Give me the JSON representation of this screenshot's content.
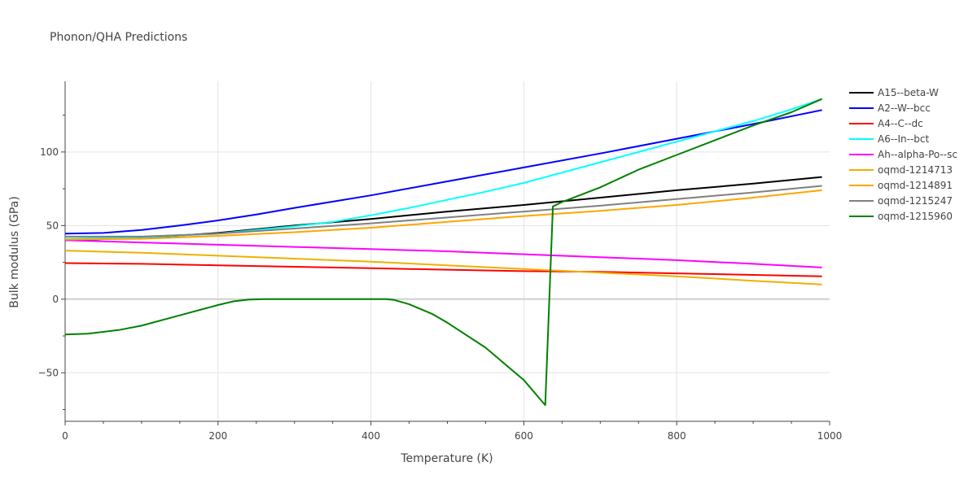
{
  "chart_data": {
    "type": "line",
    "title": "Phonon/QHA Predictions",
    "xlabel": "Temperature (K)",
    "ylabel": "Bulk modulus (GPa)",
    "xlim": [
      0,
      1000
    ],
    "ylim": [
      -83,
      148
    ],
    "x_ticks": [
      0,
      200,
      400,
      600,
      800,
      1000
    ],
    "y_ticks": [
      -50,
      0,
      50,
      100
    ],
    "x_tick_labels": [
      "0",
      "200",
      "400",
      "600",
      "800",
      "1000"
    ],
    "y_tick_labels": [
      "−50",
      "0",
      "50",
      "100"
    ],
    "grid": true,
    "legend_position": "right",
    "series": [
      {
        "name": "A15--beta-W",
        "color": "#000000",
        "x": [
          0,
          100,
          200,
          300,
          400,
          500,
          600,
          700,
          800,
          900,
          990
        ],
        "y": [
          40,
          41.5,
          45,
          50,
          54.5,
          59.5,
          64,
          69,
          74,
          78.5,
          83
        ]
      },
      {
        "name": "A2--W--bcc",
        "color": "#0000ff",
        "x": [
          0,
          50,
          100,
          150,
          200,
          250,
          300,
          400,
          500,
          600,
          700,
          800,
          900,
          990
        ],
        "y": [
          44.5,
          45,
          47,
          50,
          53.5,
          57.5,
          62,
          70.5,
          80,
          89.5,
          99,
          109,
          119,
          128.5
        ]
      },
      {
        "name": "A4--C--dc",
        "color": "#ff0000",
        "x": [
          0,
          100,
          200,
          300,
          400,
          500,
          600,
          700,
          800,
          900,
          990
        ],
        "y": [
          24.5,
          24,
          23,
          22,
          21,
          20,
          19,
          18.5,
          17.5,
          16.5,
          15.5
        ]
      },
      {
        "name": "A6--In--bct",
        "color": "#00ffff",
        "x": [
          0,
          100,
          200,
          300,
          350,
          400,
          450,
          500,
          550,
          600,
          650,
          700,
          750,
          800,
          850,
          900,
          950,
          990
        ],
        "y": [
          41,
          42,
          44.5,
          49.5,
          52.5,
          57,
          62,
          67.5,
          73,
          79,
          86,
          93,
          100,
          107,
          114,
          121,
          129,
          136
        ]
      },
      {
        "name": "Ah--alpha-Po--sc",
        "color": "#ff00ff",
        "x": [
          0,
          100,
          200,
          300,
          400,
          500,
          600,
          700,
          800,
          900,
          990
        ],
        "y": [
          40,
          38.5,
          37,
          35.5,
          34,
          32.5,
          30.5,
          28.5,
          26.5,
          24,
          21.5
        ]
      },
      {
        "name": "oqmd-1214713",
        "color": "#f0b000",
        "x": [
          0,
          100,
          200,
          300,
          400,
          500,
          600,
          700,
          800,
          900,
          990
        ],
        "y": [
          33,
          31.5,
          29.5,
          27.5,
          25.5,
          23,
          20.5,
          18,
          15.5,
          12.5,
          10
        ]
      },
      {
        "name": "oqmd-1214891",
        "color": "#ffa500",
        "x": [
          0,
          100,
          200,
          300,
          400,
          500,
          600,
          700,
          800,
          900,
          990
        ],
        "y": [
          40.5,
          41,
          43,
          45.5,
          48.5,
          52.5,
          56.5,
          60,
          64,
          69,
          74
        ]
      },
      {
        "name": "oqmd-1215247",
        "color": "#808080",
        "x": [
          0,
          100,
          200,
          300,
          400,
          500,
          600,
          700,
          800,
          900,
          990
        ],
        "y": [
          42.5,
          42.5,
          44.5,
          48,
          51.5,
          55.5,
          59.5,
          63.5,
          68,
          72.5,
          77
        ]
      },
      {
        "name": "oqmd-1215960",
        "color": "#008000",
        "x": [
          0,
          30,
          70,
          100,
          150,
          200,
          220,
          240,
          260,
          300,
          350,
          400,
          420,
          430,
          450,
          480,
          500,
          550,
          600,
          628,
          638,
          650,
          700,
          750,
          800,
          850,
          900,
          950,
          990
        ],
        "y": [
          -24,
          -23.5,
          -21,
          -18,
          -11,
          -4,
          -1.5,
          -0.3,
          0,
          0,
          0,
          0,
          0,
          -0.5,
          -3.5,
          -10,
          -16,
          -33,
          -55,
          -72,
          63,
          66,
          76,
          88,
          98,
          108,
          118,
          127,
          136
        ]
      }
    ]
  }
}
